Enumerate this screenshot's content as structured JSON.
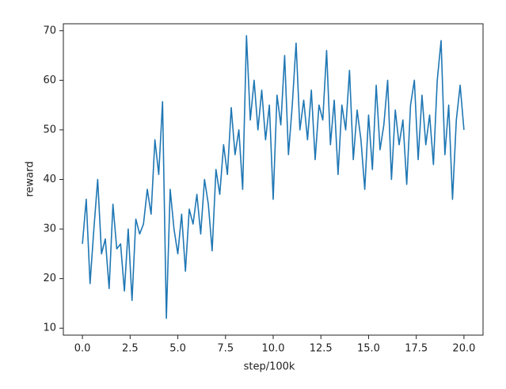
{
  "chart_data": {
    "type": "line",
    "xlabel": "step/100k",
    "ylabel": "reward",
    "x": [
      0,
      0.2,
      0.4,
      0.6,
      0.8,
      1.0,
      1.2,
      1.4,
      1.6,
      1.8,
      2.0,
      2.2,
      2.4,
      2.6,
      2.8,
      3.0,
      3.2,
      3.4,
      3.6,
      3.8,
      4.0,
      4.2,
      4.4,
      4.6,
      4.8,
      5.0,
      5.2,
      5.4,
      5.6,
      5.8,
      6.0,
      6.2,
      6.4,
      6.6,
      6.8,
      7.0,
      7.2,
      7.4,
      7.6,
      7.8,
      8.0,
      8.2,
      8.4,
      8.6,
      8.8,
      9.0,
      9.2,
      9.4,
      9.6,
      9.8,
      10.0,
      10.2,
      10.4,
      10.6,
      10.8,
      11.0,
      11.2,
      11.4,
      11.6,
      11.8,
      12.0,
      12.2,
      12.4,
      12.6,
      12.8,
      13.0,
      13.2,
      13.4,
      13.6,
      13.8,
      14.0,
      14.2,
      14.4,
      14.6,
      14.8,
      15.0,
      15.2,
      15.4,
      15.6,
      15.8,
      16.0,
      16.2,
      16.4,
      16.6,
      16.8,
      17.0,
      17.2,
      17.4,
      17.6,
      17.8,
      18.0,
      18.2,
      18.4,
      18.6,
      18.8,
      19.0,
      19.2,
      19.4,
      19.6,
      19.8,
      20.0
    ],
    "series": [
      {
        "color": "#1f77b4",
        "values": [
          27,
          36,
          19,
          30,
          40,
          25,
          28,
          18,
          35,
          26,
          27,
          17.5,
          30,
          15.6,
          32,
          29,
          31,
          38,
          33,
          48,
          41,
          55.7,
          12,
          38,
          30,
          25,
          33,
          21.5,
          34,
          31,
          37,
          29,
          40,
          35,
          25.6,
          42,
          37,
          47,
          41,
          54.5,
          45,
          50,
          38,
          69,
          52,
          60,
          50,
          58,
          48,
          55,
          36,
          57,
          51,
          65,
          45,
          55,
          67.5,
          50,
          56,
          48,
          58,
          44,
          55,
          52,
          66,
          47,
          56,
          41,
          55,
          50,
          62,
          44,
          54,
          48,
          38,
          53,
          42,
          59,
          46,
          51,
          60,
          40,
          54,
          47,
          52,
          39,
          55,
          60,
          44,
          57,
          47,
          53,
          43,
          60,
          68,
          45,
          55,
          36,
          52,
          59,
          50
        ]
      }
    ],
    "xlim": [
      -1,
      21
    ],
    "ylim": [
      8.6,
      71.4
    ],
    "xticks": [
      {
        "value": 0,
        "label": "0.0"
      },
      {
        "value": 2.5,
        "label": "2.5"
      },
      {
        "value": 5,
        "label": "5.0"
      },
      {
        "value": 7.5,
        "label": "7.5"
      },
      {
        "value": 10,
        "label": "10.0"
      },
      {
        "value": 12.5,
        "label": "12.5"
      },
      {
        "value": 15,
        "label": "15.0"
      },
      {
        "value": 17.5,
        "label": "17.5"
      },
      {
        "value": 20,
        "label": "20.0"
      }
    ],
    "yticks": [
      10,
      20,
      30,
      40,
      50,
      60,
      70
    ]
  }
}
